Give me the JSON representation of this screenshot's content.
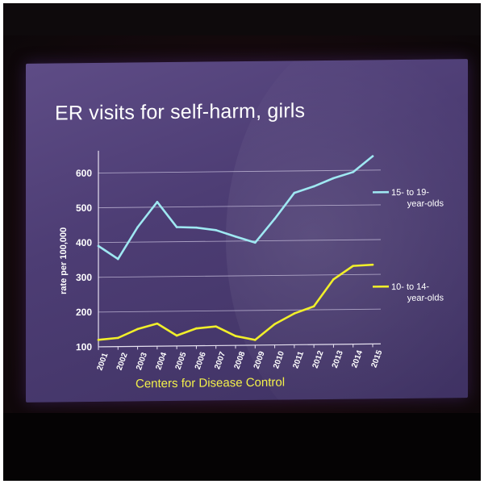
{
  "slide": {
    "title": "ER visits for self-harm, girls",
    "source": "Centers for Disease Control"
  },
  "colors": {
    "series_15_19": "#9fe8f2",
    "series_10_14": "#f1ef2a",
    "source_text": "#f3f04a",
    "axis_text": "#ffffff"
  },
  "chart_data": {
    "type": "line",
    "title": "",
    "xlabel": "",
    "ylabel": "rate per 100,000",
    "ylim": [
      100,
      650
    ],
    "yticks": [
      100,
      200,
      300,
      400,
      500,
      600
    ],
    "grid": true,
    "x": [
      "2001",
      "2002",
      "2003",
      "2004",
      "2005",
      "2006",
      "2007",
      "2008",
      "2009",
      "2010",
      "2011",
      "2012",
      "2013",
      "2014",
      "2015"
    ],
    "series": [
      {
        "name": "15- to 19-year-olds",
        "legend_lines": [
          "15- to 19-",
          "year-olds"
        ],
        "values": [
          390,
          352,
          443,
          515,
          442,
          440,
          432,
          413,
          395,
          463,
          537,
          555,
          578,
          595,
          640
        ]
      },
      {
        "name": "10- to 14-year-olds",
        "legend_lines": [
          "10- to 14-",
          "year-olds"
        ],
        "values": [
          120,
          125,
          150,
          165,
          130,
          150,
          155,
          127,
          115,
          160,
          190,
          210,
          287,
          325,
          328
        ]
      }
    ]
  }
}
